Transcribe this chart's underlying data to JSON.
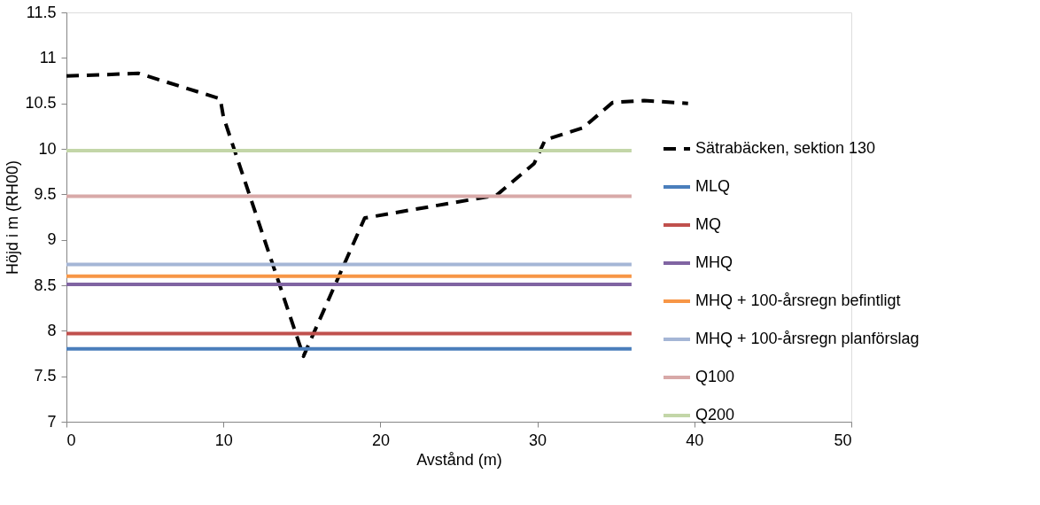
{
  "chart_data": {
    "type": "line",
    "xlabel": "Avstånd (m)",
    "ylabel": "Höjd i m (RH00)",
    "xlim": [
      0,
      50
    ],
    "xticks": [
      0,
      10,
      20,
      30,
      40,
      50
    ],
    "ylim": [
      7,
      11.5
    ],
    "yticks": [
      7,
      7.5,
      8,
      8.5,
      9,
      9.5,
      10,
      10.5,
      11,
      11.5
    ],
    "grid": false,
    "legend": "right",
    "marker": "none",
    "series": [
      {
        "name": "Sätrabäcken, sektion 130",
        "color": "#000000",
        "line_style": "dashed",
        "x": [
          0,
          4.6,
          9.8,
          10.0,
          15.1,
          19.0,
          27.4,
          29.8,
          30.5,
          32.9,
          34.8,
          36.8,
          39.6
        ],
        "values": [
          10.8,
          10.83,
          10.55,
          10.35,
          7.72,
          9.24,
          9.49,
          9.84,
          10.1,
          10.23,
          10.51,
          10.53,
          10.5
        ]
      },
      {
        "name": "MLQ",
        "color": "#4a7ebb",
        "line_style": "solid",
        "x": [
          0,
          36
        ],
        "values": [
          7.8,
          7.8
        ]
      },
      {
        "name": "MQ",
        "color": "#c0504d",
        "line_style": "solid",
        "x": [
          0,
          36
        ],
        "values": [
          7.97,
          7.97
        ]
      },
      {
        "name": "MHQ",
        "color": "#8064a2",
        "line_style": "solid",
        "x": [
          0,
          36
        ],
        "values": [
          8.51,
          8.51
        ]
      },
      {
        "name": "MHQ + 100-årsregn befintligt",
        "color": "#f79646",
        "line_style": "solid",
        "x": [
          0,
          36
        ],
        "values": [
          8.6,
          8.6
        ]
      },
      {
        "name": "MHQ + 100-årsregn planförslag",
        "color": "#a5b6d6",
        "line_style": "solid",
        "x": [
          0,
          36
        ],
        "values": [
          8.73,
          8.73
        ]
      },
      {
        "name": "Q100",
        "color": "#d8a9a8",
        "line_style": "solid",
        "x": [
          0,
          36
        ],
        "values": [
          9.48,
          9.48
        ]
      },
      {
        "name": "Q200",
        "color": "#c3d6a8",
        "line_style": "solid",
        "x": [
          0,
          36
        ],
        "values": [
          9.98,
          9.98
        ]
      }
    ]
  }
}
